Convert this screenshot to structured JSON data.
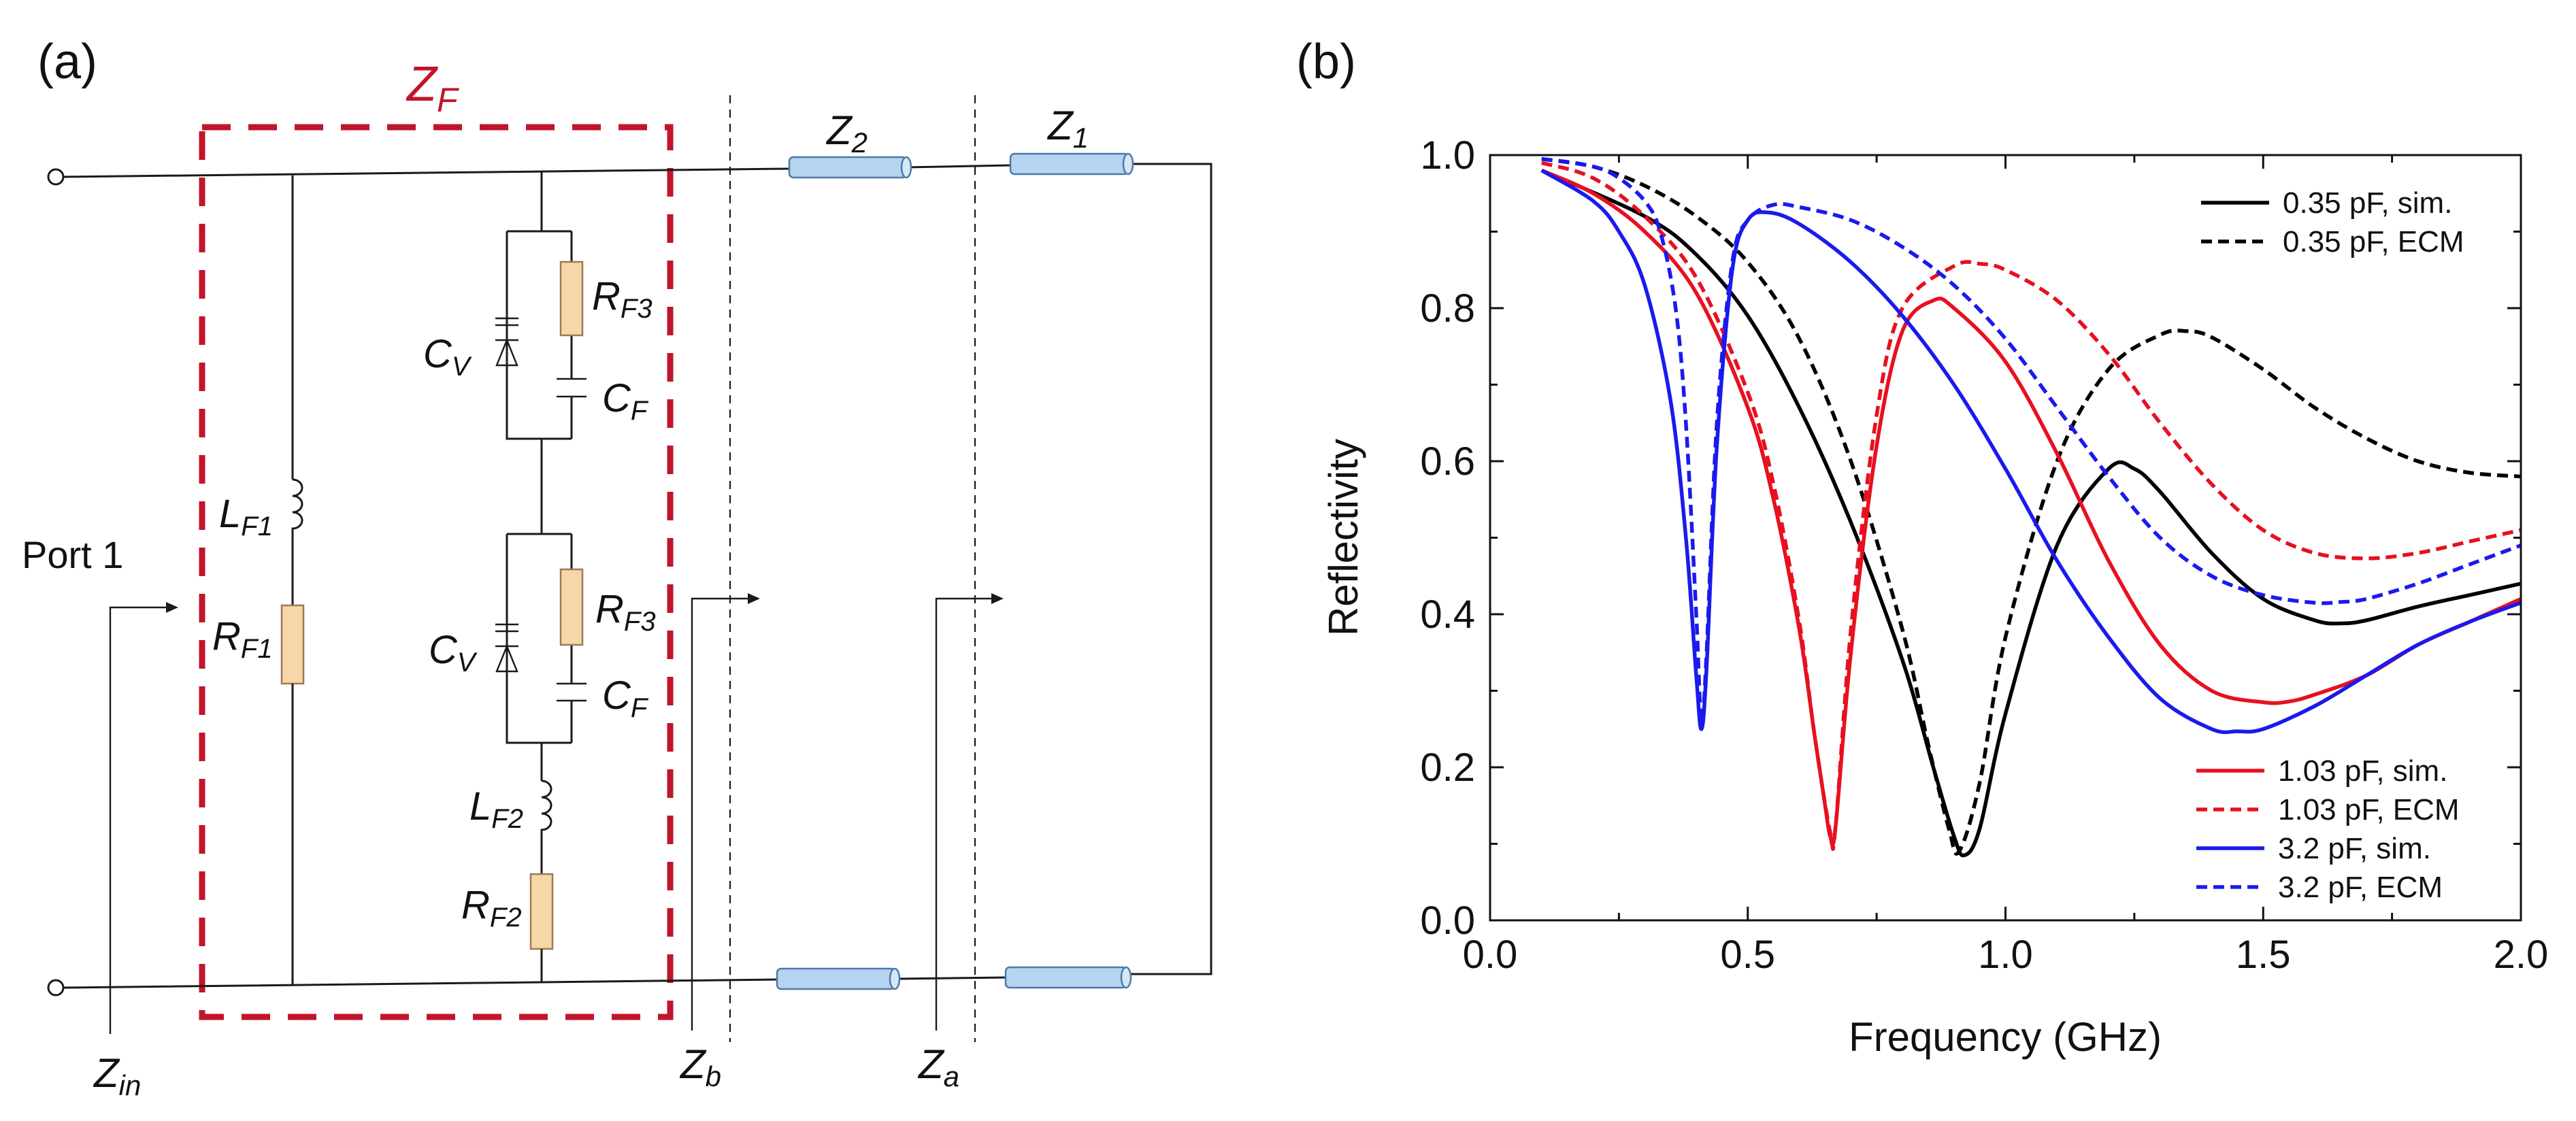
{
  "panel_a": {
    "panel_label": "(a)",
    "zf_label": {
      "main": "Z",
      "sub": "F"
    },
    "port_label": "Port 1",
    "z2": {
      "main": "Z",
      "sub": "2"
    },
    "z1": {
      "main": "Z",
      "sub": "1"
    },
    "zin": {
      "main": "Z",
      "sub": "in"
    },
    "zb": {
      "main": "Z",
      "sub": "b"
    },
    "za": {
      "main": "Z",
      "sub": "a"
    },
    "lf1": {
      "main": "L",
      "sub": "F1"
    },
    "rf1": {
      "main": "R",
      "sub": "F1"
    },
    "cv_top": {
      "main": "C",
      "sub": "V"
    },
    "rf3_top": {
      "main": "R",
      "sub": "F3"
    },
    "cf_top": {
      "main": "C",
      "sub": "F"
    },
    "cv_bot": {
      "main": "C",
      "sub": "V"
    },
    "rf3_bot": {
      "main": "R",
      "sub": "F3"
    },
    "cf_bot": {
      "main": "C",
      "sub": "F"
    },
    "lf2": {
      "main": "L",
      "sub": "F2"
    },
    "rf2": {
      "main": "R",
      "sub": "F2"
    },
    "colors": {
      "zf_box": "#c0152b",
      "resistor": "#f7d7a8",
      "tline": "#b6d3f0"
    }
  },
  "panel_b": {
    "panel_label": "(b)"
  },
  "chart_data": {
    "type": "line",
    "title": "",
    "xlabel": "Frequency (GHz)",
    "ylabel": "Reflectivity",
    "xlim": [
      0.0,
      2.0
    ],
    "ylim": [
      0.0,
      1.0
    ],
    "xticks": [
      "0.0",
      "0.5",
      "1.0",
      "1.5",
      "2.0"
    ],
    "yticks": [
      "0.0",
      "0.2",
      "0.4",
      "0.6",
      "0.8",
      "1.0"
    ],
    "legend_top": [
      "0.35 pF, sim.",
      "0.35 pF, ECM"
    ],
    "legend_bottom": [
      "1.03 pF, sim.",
      "1.03 pF, ECM",
      "3.2 pF, sim.",
      "3.2 pF, ECM"
    ],
    "series": [
      {
        "name": "0.35 pF, sim.",
        "color": "#000000",
        "dashed": false,
        "x": [
          0.1,
          0.3,
          0.4,
          0.5,
          0.6,
          0.7,
          0.8,
          0.86,
          0.9,
          0.92,
          0.95,
          1.0,
          1.1,
          1.2,
          1.25,
          1.3,
          1.4,
          1.5,
          1.6,
          1.65,
          1.7,
          1.8,
          1.9,
          2.0
        ],
        "y": [
          0.98,
          0.92,
          0.87,
          0.79,
          0.67,
          0.52,
          0.34,
          0.2,
          0.11,
          0.085,
          0.12,
          0.27,
          0.49,
          0.59,
          0.59,
          0.56,
          0.48,
          0.42,
          0.392,
          0.388,
          0.392,
          0.41,
          0.425,
          0.44
        ]
      },
      {
        "name": "0.35 pF, ECM",
        "color": "#000000",
        "dashed": true,
        "x": [
          0.1,
          0.2,
          0.3,
          0.4,
          0.5,
          0.6,
          0.7,
          0.8,
          0.85,
          0.89,
          0.91,
          0.95,
          1.0,
          1.1,
          1.2,
          1.3,
          1.35,
          1.4,
          1.5,
          1.6,
          1.7,
          1.8,
          1.9,
          2.0
        ],
        "y": [
          0.995,
          0.985,
          0.96,
          0.92,
          0.86,
          0.76,
          0.6,
          0.38,
          0.23,
          0.12,
          0.09,
          0.18,
          0.37,
          0.6,
          0.72,
          0.765,
          0.77,
          0.762,
          0.72,
          0.67,
          0.63,
          0.6,
          0.585,
          0.58
        ]
      },
      {
        "name": "1.03 pF, sim.",
        "color": "#e8101f",
        "dashed": false,
        "x": [
          0.1,
          0.2,
          0.3,
          0.4,
          0.5,
          0.55,
          0.6,
          0.63,
          0.65,
          0.66,
          0.67,
          0.7,
          0.75,
          0.8,
          0.86,
          0.9,
          1.0,
          1.1,
          1.2,
          1.3,
          1.4,
          1.5,
          1.55,
          1.6,
          1.7,
          1.8,
          1.9,
          2.0
        ],
        "y": [
          0.98,
          0.95,
          0.9,
          0.82,
          0.67,
          0.55,
          0.38,
          0.24,
          0.15,
          0.11,
          0.12,
          0.35,
          0.62,
          0.77,
          0.81,
          0.8,
          0.73,
          0.61,
          0.47,
          0.36,
          0.3,
          0.285,
          0.286,
          0.295,
          0.32,
          0.36,
          0.39,
          0.42
        ]
      },
      {
        "name": "1.03 pF, ECM",
        "color": "#e8101f",
        "dashed": true,
        "x": [
          0.1,
          0.2,
          0.3,
          0.4,
          0.5,
          0.55,
          0.6,
          0.63,
          0.66,
          0.67,
          0.7,
          0.75,
          0.8,
          0.9,
          0.95,
          1.0,
          1.1,
          1.2,
          1.3,
          1.4,
          1.5,
          1.6,
          1.7,
          1.8,
          1.9,
          2.0
        ],
        "y": [
          0.99,
          0.97,
          0.92,
          0.84,
          0.69,
          0.57,
          0.39,
          0.24,
          0.115,
          0.12,
          0.38,
          0.66,
          0.8,
          0.855,
          0.858,
          0.85,
          0.81,
          0.74,
          0.65,
          0.57,
          0.51,
          0.48,
          0.473,
          0.48,
          0.495,
          0.51
        ]
      },
      {
        "name": "3.2 pF, sim.",
        "color": "#1a1aee",
        "dashed": false,
        "x": [
          0.1,
          0.2,
          0.25,
          0.3,
          0.35,
          0.38,
          0.4,
          0.41,
          0.42,
          0.44,
          0.47,
          0.5,
          0.54,
          0.6,
          0.7,
          0.8,
          0.9,
          1.0,
          1.1,
          1.2,
          1.3,
          1.4,
          1.45,
          1.5,
          1.6,
          1.7,
          1.8,
          1.9,
          2.0
        ],
        "y": [
          0.98,
          0.94,
          0.9,
          0.83,
          0.68,
          0.5,
          0.32,
          0.25,
          0.33,
          0.62,
          0.85,
          0.915,
          0.925,
          0.91,
          0.86,
          0.79,
          0.7,
          0.59,
          0.47,
          0.37,
          0.29,
          0.25,
          0.247,
          0.25,
          0.28,
          0.32,
          0.36,
          0.39,
          0.415
        ]
      },
      {
        "name": "3.2 pF, ECM",
        "color": "#1a1aee",
        "dashed": true,
        "x": [
          0.1,
          0.2,
          0.25,
          0.3,
          0.33,
          0.36,
          0.38,
          0.4,
          0.41,
          0.42,
          0.44,
          0.47,
          0.5,
          0.55,
          0.6,
          0.7,
          0.8,
          0.9,
          1.0,
          1.1,
          1.2,
          1.3,
          1.4,
          1.5,
          1.6,
          1.65,
          1.7,
          1.8,
          1.9,
          2.0
        ],
        "y": [
          0.995,
          0.985,
          0.97,
          0.94,
          0.9,
          0.8,
          0.65,
          0.4,
          0.26,
          0.35,
          0.65,
          0.86,
          0.915,
          0.935,
          0.932,
          0.915,
          0.88,
          0.83,
          0.76,
          0.67,
          0.58,
          0.5,
          0.45,
          0.425,
          0.415,
          0.416,
          0.42,
          0.44,
          0.465,
          0.49
        ]
      }
    ]
  }
}
